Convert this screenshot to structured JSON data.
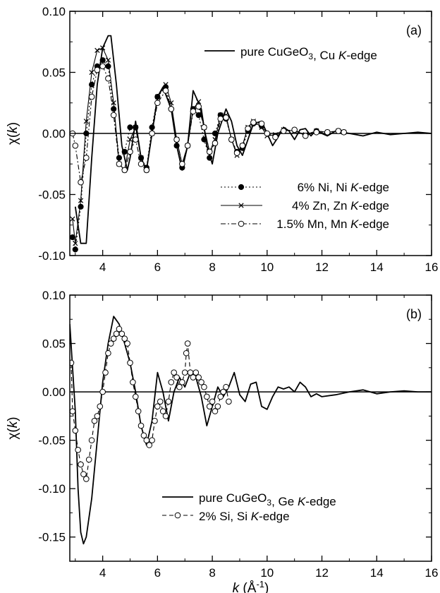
{
  "chart_data": [
    {
      "type": "line",
      "panel_label": "(a)",
      "ylabel": "χ(k)",
      "xlabel": "",
      "xlim": [
        2.8,
        16
      ],
      "ylim": [
        -0.1,
        0.1
      ],
      "xticks": [
        4,
        6,
        8,
        10,
        12,
        14,
        16
      ],
      "yticks": [
        -0.1,
        -0.05,
        0.0,
        0.05,
        0.1
      ],
      "ytick_labels": [
        "-0.10",
        "-0.05",
        "0.00",
        "0.05",
        "0.10"
      ],
      "zero_line": true,
      "legend_top": "pure CuGeO3, Cu K-edge",
      "legend_bottom_placement": "center",
      "series": [
        {
          "name": "pure CuGeO3, Cu K-edge",
          "style": "solid",
          "marker": "none",
          "x": [
            3.0,
            3.2,
            3.4,
            3.6,
            3.8,
            4.0,
            4.2,
            4.3,
            4.5,
            4.7,
            4.9,
            5.0,
            5.2,
            5.4,
            5.6,
            5.8,
            6.0,
            6.2,
            6.5,
            6.7,
            6.9,
            7.1,
            7.3,
            7.6,
            7.8,
            8.0,
            8.2,
            8.5,
            8.7,
            8.9,
            9.1,
            9.3,
            9.5,
            9.8,
            10.0,
            10.2,
            10.4,
            10.6,
            10.8,
            11.0,
            11.2,
            11.4,
            11.6,
            11.8,
            12.0,
            12.2,
            12.5,
            13.0,
            13.5,
            14.0,
            14.5,
            15.0,
            15.5,
            16.0
          ],
          "y": [
            -0.06,
            -0.09,
            -0.09,
            -0.02,
            0.04,
            0.07,
            0.08,
            0.08,
            0.04,
            -0.01,
            -0.03,
            -0.02,
            0.01,
            -0.02,
            -0.03,
            0.0,
            0.03,
            0.038,
            0.02,
            -0.01,
            -0.03,
            -0.01,
            0.035,
            0.02,
            -0.01,
            -0.025,
            0.0,
            0.02,
            0.01,
            -0.01,
            -0.018,
            -0.005,
            0.008,
            0.01,
            0.0,
            -0.01,
            -0.003,
            0.005,
            0.002,
            -0.005,
            0.003,
            0.004,
            -0.002,
            0.003,
            0.0,
            -0.002,
            0.002,
            0.0,
            -0.002,
            0.001,
            -0.001,
            0.0,
            0.001,
            0.0
          ]
        },
        {
          "name": "6% Ni, Ni K-edge",
          "style": "dotted",
          "marker": "filled-circle",
          "x": [
            2.9,
            3.0,
            3.2,
            3.4,
            3.6,
            3.8,
            4.0,
            4.2,
            4.4,
            4.6,
            4.8,
            5.0,
            5.2,
            5.4,
            5.6,
            5.8,
            6.0,
            6.3,
            6.5,
            6.7,
            6.9,
            7.1,
            7.3,
            7.5,
            7.7,
            7.9,
            8.1,
            8.3,
            8.5,
            8.7,
            8.9,
            9.1,
            9.3,
            9.5,
            9.8,
            10.0,
            10.3,
            10.6,
            11.0,
            11.4,
            11.8,
            12.2,
            12.6,
            12.8
          ],
          "y": [
            -0.085,
            -0.095,
            -0.06,
            0.0,
            0.04,
            0.055,
            0.06,
            0.055,
            0.02,
            -0.02,
            -0.015,
            0.005,
            0.005,
            -0.02,
            -0.028,
            0.005,
            0.03,
            0.038,
            0.02,
            -0.01,
            -0.028,
            -0.01,
            0.02,
            0.015,
            -0.005,
            -0.02,
            0.0,
            0.015,
            0.012,
            -0.005,
            -0.015,
            -0.012,
            0.002,
            0.008,
            0.006,
            0.0,
            -0.002,
            0.002,
            0.003,
            -0.002,
            0.002,
            0.001,
            0.002,
            0.001
          ]
        },
        {
          "name": "4% Zn, Zn K-edge",
          "style": "solid",
          "marker": "cross",
          "x": [
            2.9,
            3.0,
            3.2,
            3.4,
            3.6,
            3.8,
            4.0,
            4.2,
            4.4,
            4.6,
            4.8,
            5.0,
            5.2,
            5.4,
            5.6,
            5.8,
            6.0,
            6.3,
            6.5,
            6.7,
            6.9,
            7.1,
            7.3,
            7.5,
            7.7,
            7.9,
            8.1,
            8.3,
            8.5,
            8.7,
            8.9,
            9.1,
            9.3,
            9.5,
            9.8,
            10.0,
            10.3,
            10.6,
            11.0,
            11.4,
            11.8,
            12.2,
            12.6,
            12.8
          ],
          "y": [
            -0.07,
            -0.09,
            -0.055,
            0.01,
            0.05,
            0.068,
            0.07,
            0.06,
            0.025,
            -0.025,
            -0.03,
            -0.005,
            0.005,
            -0.02,
            -0.03,
            0.0,
            0.03,
            0.04,
            0.025,
            -0.005,
            -0.025,
            -0.01,
            0.02,
            0.026,
            0.005,
            -0.015,
            -0.005,
            0.015,
            0.015,
            -0.005,
            -0.018,
            -0.01,
            0.005,
            0.01,
            0.005,
            -0.002,
            -0.001,
            0.003,
            0.002,
            -0.001,
            0.002,
            0.001,
            0.002,
            0.001
          ]
        },
        {
          "name": "1.5% Mn, Mn K-edge",
          "style": "dashdot",
          "marker": "open-circle",
          "x": [
            2.9,
            3.0,
            3.2,
            3.4,
            3.6,
            3.8,
            4.0,
            4.2,
            4.4,
            4.6,
            4.8,
            5.0,
            5.2,
            5.4,
            5.6,
            5.8,
            6.0,
            6.3,
            6.5,
            6.7,
            6.9,
            7.1,
            7.3,
            7.5,
            7.7,
            7.9,
            8.1,
            8.3,
            8.5,
            8.7,
            8.9,
            9.1,
            9.3,
            9.5,
            9.8,
            10.0,
            10.3,
            10.6,
            11.0,
            11.4,
            11.8,
            12.2,
            12.6,
            12.8
          ],
          "y": [
            0.0,
            -0.01,
            -0.04,
            -0.02,
            0.03,
            0.052,
            0.055,
            0.045,
            0.015,
            -0.025,
            -0.03,
            -0.015,
            -0.005,
            -0.025,
            -0.03,
            0.0,
            0.025,
            0.035,
            0.02,
            -0.005,
            -0.025,
            -0.01,
            0.018,
            0.022,
            0.005,
            -0.015,
            -0.008,
            0.012,
            0.013,
            -0.005,
            -0.016,
            -0.01,
            0.004,
            0.009,
            0.008,
            0.0,
            -0.003,
            0.002,
            0.003,
            -0.002,
            0.001,
            0.001,
            0.002,
            0.001
          ]
        }
      ]
    },
    {
      "type": "line",
      "panel_label": "(b)",
      "ylabel": "χ(k)",
      "xlabel": "k (Å⁻¹)",
      "xlim": [
        2.8,
        16
      ],
      "ylim": [
        -0.175,
        0.1
      ],
      "xticks": [
        4,
        6,
        8,
        10,
        12,
        14,
        16
      ],
      "yticks": [
        -0.15,
        -0.1,
        -0.05,
        0.0,
        0.05,
        0.1
      ],
      "ytick_labels": [
        "-0.15",
        "-0.10",
        "-0.05",
        "0.00",
        "0.05",
        "0.10"
      ],
      "zero_line": true,
      "legend_placement": "bottom-center",
      "series": [
        {
          "name": "pure CuGeO3, Ge K-edge",
          "style": "solid",
          "marker": "none",
          "x": [
            2.8,
            3.0,
            3.1,
            3.2,
            3.3,
            3.4,
            3.6,
            3.8,
            4.0,
            4.2,
            4.4,
            4.6,
            4.8,
            5.0,
            5.2,
            5.4,
            5.6,
            5.8,
            6.0,
            6.2,
            6.4,
            6.6,
            6.8,
            7.0,
            7.2,
            7.4,
            7.6,
            7.8,
            8.0,
            8.2,
            8.4,
            8.6,
            8.8,
            9.0,
            9.2,
            9.4,
            9.6,
            9.8,
            10.0,
            10.2,
            10.4,
            10.6,
            10.8,
            11.0,
            11.2,
            11.4,
            11.6,
            11.8,
            12.0,
            12.5,
            13.0,
            13.5,
            14.0,
            14.5,
            15.0,
            15.5,
            16.0
          ],
          "y": [
            0.07,
            -0.02,
            -0.1,
            -0.145,
            -0.157,
            -0.15,
            -0.11,
            -0.05,
            0.01,
            0.05,
            0.078,
            0.07,
            0.05,
            0.03,
            0.0,
            -0.035,
            -0.055,
            -0.03,
            0.02,
            0.0,
            -0.03,
            0.0,
            0.015,
            0.005,
            0.02,
            0.015,
            -0.005,
            -0.035,
            -0.015,
            0.005,
            -0.005,
            0.005,
            0.02,
            -0.003,
            -0.01,
            0.008,
            0.01,
            -0.015,
            -0.018,
            -0.005,
            0.005,
            0.003,
            0.005,
            0.0,
            0.01,
            0.005,
            -0.005,
            -0.002,
            -0.005,
            -0.003,
            0.0,
            0.002,
            -0.002,
            0.0,
            0.001,
            0.0,
            0.0
          ]
        },
        {
          "name": "2% Si, Si K-edge",
          "style": "dashed",
          "marker": "open-circle",
          "x": [
            2.85,
            2.9,
            3.0,
            3.1,
            3.2,
            3.3,
            3.4,
            3.5,
            3.6,
            3.7,
            3.8,
            3.9,
            4.0,
            4.1,
            4.2,
            4.3,
            4.4,
            4.5,
            4.6,
            4.7,
            4.8,
            4.9,
            5.0,
            5.1,
            5.2,
            5.3,
            5.4,
            5.5,
            5.6,
            5.7,
            5.8,
            5.9,
            6.0,
            6.1,
            6.2,
            6.3,
            6.4,
            6.5,
            6.6,
            6.7,
            6.8,
            6.9,
            7.0,
            7.05,
            7.1,
            7.2,
            7.3,
            7.4,
            7.5,
            7.6,
            7.7,
            7.8,
            7.9,
            8.0,
            8.1,
            8.2,
            8.3,
            8.4,
            8.5,
            8.6
          ],
          "y": [
            0.03,
            -0.02,
            -0.04,
            -0.06,
            -0.075,
            -0.085,
            -0.09,
            -0.07,
            -0.05,
            -0.03,
            -0.025,
            -0.015,
            0.0,
            0.02,
            0.04,
            0.05,
            0.055,
            0.06,
            0.065,
            0.06,
            0.055,
            0.05,
            0.03,
            0.01,
            -0.005,
            -0.02,
            -0.035,
            -0.045,
            -0.05,
            -0.055,
            -0.05,
            -0.03,
            -0.015,
            -0.01,
            -0.02,
            -0.025,
            -0.01,
            0.01,
            0.02,
            0.015,
            0.005,
            0.01,
            0.02,
            0.04,
            0.05,
            0.02,
            0.015,
            0.02,
            0.015,
            0.01,
            0.005,
            -0.005,
            -0.015,
            -0.01,
            -0.02,
            -0.015,
            -0.005,
            0.0,
            0.005,
            -0.01
          ]
        }
      ]
    }
  ]
}
